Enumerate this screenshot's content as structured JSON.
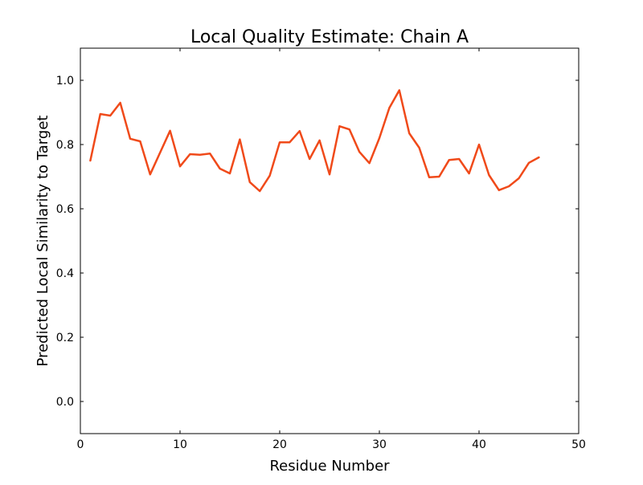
{
  "chart_data": {
    "type": "line",
    "title": "Local Quality Estimate: Chain A",
    "xlabel": "Residue Number",
    "ylabel": "Predicted Local Similarity to Target",
    "xlim": [
      0,
      50
    ],
    "ylim": [
      -0.1,
      1.1
    ],
    "xticks": [
      0,
      10,
      20,
      30,
      40,
      50
    ],
    "xtick_labels": [
      "0",
      "10",
      "20",
      "30",
      "40",
      "50"
    ],
    "yticks": [
      0.0,
      0.2,
      0.4,
      0.6,
      0.8,
      1.0
    ],
    "ytick_labels": [
      "0.0",
      "0.2",
      "0.4",
      "0.6",
      "0.8",
      "1.0"
    ],
    "grid": false,
    "series": [
      {
        "color": "#f04a1a",
        "x": [
          1,
          2,
          3,
          4,
          5,
          6,
          7,
          8,
          9,
          10,
          11,
          12,
          13,
          14,
          15,
          16,
          17,
          18,
          19,
          20,
          21,
          22,
          23,
          24,
          25,
          26,
          27,
          28,
          29,
          30,
          31,
          32,
          33,
          34,
          35,
          36,
          37,
          38,
          39,
          40,
          41,
          42,
          43,
          44,
          45,
          46
        ],
        "y": [
          0.75,
          0.895,
          0.89,
          0.93,
          0.818,
          0.81,
          0.707,
          0.775,
          0.843,
          0.732,
          0.77,
          0.768,
          0.772,
          0.725,
          0.71,
          0.816,
          0.683,
          0.655,
          0.703,
          0.807,
          0.807,
          0.842,
          0.755,
          0.813,
          0.707,
          0.857,
          0.847,
          0.777,
          0.742,
          0.82,
          0.914,
          0.969,
          0.835,
          0.79,
          0.698,
          0.7,
          0.752,
          0.755,
          0.71,
          0.8,
          0.705,
          0.658,
          0.67,
          0.695,
          0.743,
          0.76
        ]
      }
    ]
  }
}
